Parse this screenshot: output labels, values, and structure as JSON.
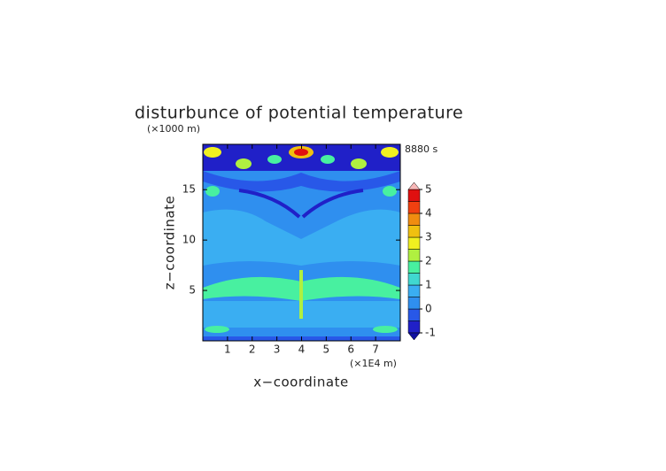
{
  "chart_data": {
    "type": "contour",
    "title": "disturbunce of potential temperature",
    "y_unit": "(×1000 m)",
    "x_unit": "(×1E4 m)",
    "time_label": "8880 s",
    "xlabel": "x−coordinate",
    "ylabel": "z−coordinate",
    "xlim": [
      0,
      8
    ],
    "xticks": [
      1,
      2,
      3,
      4,
      5,
      6,
      7
    ],
    "ylim": [
      0,
      19.5
    ],
    "yticks": [
      5,
      10,
      15
    ],
    "grid": false,
    "colorbar": {
      "levels": [
        -1,
        -0.5,
        0,
        0.5,
        1,
        1.5,
        2,
        2.5,
        3,
        3.5,
        4,
        4.5,
        5
      ],
      "ticks": [
        -1,
        0,
        1,
        2,
        3,
        4,
        5
      ],
      "colors": [
        "#2020c8",
        "#2858e8",
        "#2f8fef",
        "#3aaef2",
        "#40d8d0",
        "#48f0a0",
        "#b0f040",
        "#f0f020",
        "#f0c010",
        "#f08c10",
        "#f04010",
        "#e01010"
      ],
      "under_color": "#1010a0",
      "over_color": "#f8b8b8"
    }
  }
}
